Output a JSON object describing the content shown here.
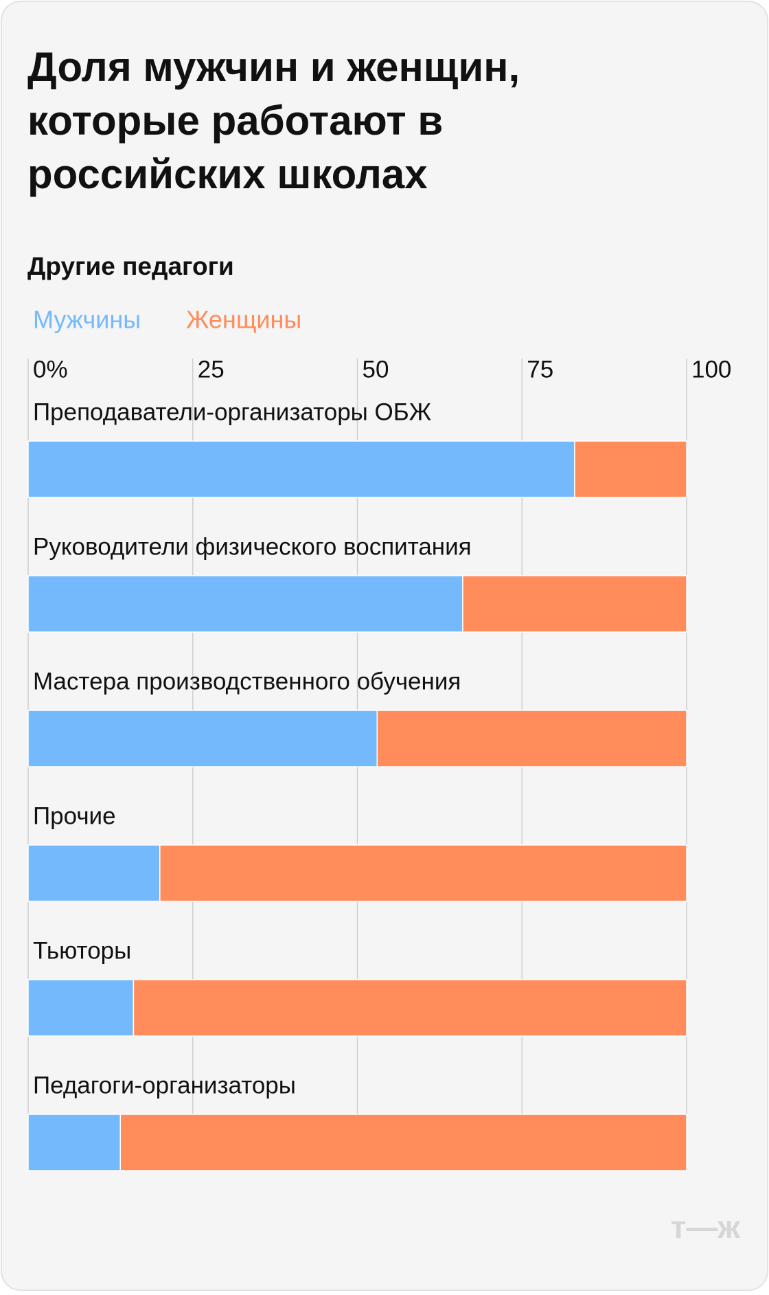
{
  "chart_data": {
    "type": "stacked-bar-horizontal",
    "title": "Доля мужчин и женщин, которые работают в российских школах",
    "subtitle": "Другие педагоги",
    "categories": [
      "Преподаватели-организаторы ОБЖ",
      "Руководители физического воспитания",
      "Мастера производственного обучения",
      "Прочие",
      "Тьюторы",
      "Педагоги-организаторы"
    ],
    "series": [
      {
        "name": "Мужчины",
        "color": "#74b9fc",
        "values": [
          83,
          66,
          53,
          20,
          16,
          14
        ]
      },
      {
        "name": "Женщины",
        "color": "#ff8c5a",
        "values": [
          17,
          34,
          47,
          80,
          84,
          86
        ]
      }
    ],
    "xlim": [
      0,
      100
    ],
    "xticks": [
      {
        "value": 0,
        "label": "0%"
      },
      25,
      50,
      75,
      100
    ],
    "grid": true
  },
  "logo": "т—ж"
}
